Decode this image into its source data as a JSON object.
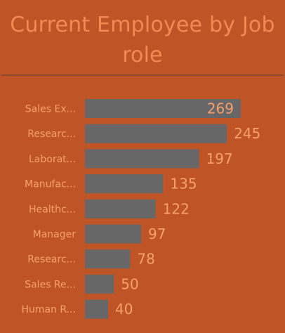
{
  "title": "Current Employee by Job role",
  "chart_data": {
    "type": "bar",
    "orientation": "horizontal",
    "title": "Current Employee by Job role",
    "categories": [
      "Sales Ex...",
      "Researc...",
      "Laborat...",
      "Manufac...",
      "Healthc...",
      "Manager",
      "Researc...",
      "Sales Re...",
      "Human R..."
    ],
    "values": [
      269,
      245,
      197,
      135,
      122,
      97,
      78,
      50,
      40
    ],
    "value_labels": [
      "269",
      "245",
      "197",
      "135",
      "122",
      "97",
      "78",
      "50",
      "40"
    ],
    "xlim": [
      0,
      269
    ],
    "grid": false,
    "legend": "none",
    "colors": {
      "background": "#bf5427",
      "bar": "#676767",
      "text": "#f5a06d",
      "title": "#f08a52"
    }
  }
}
